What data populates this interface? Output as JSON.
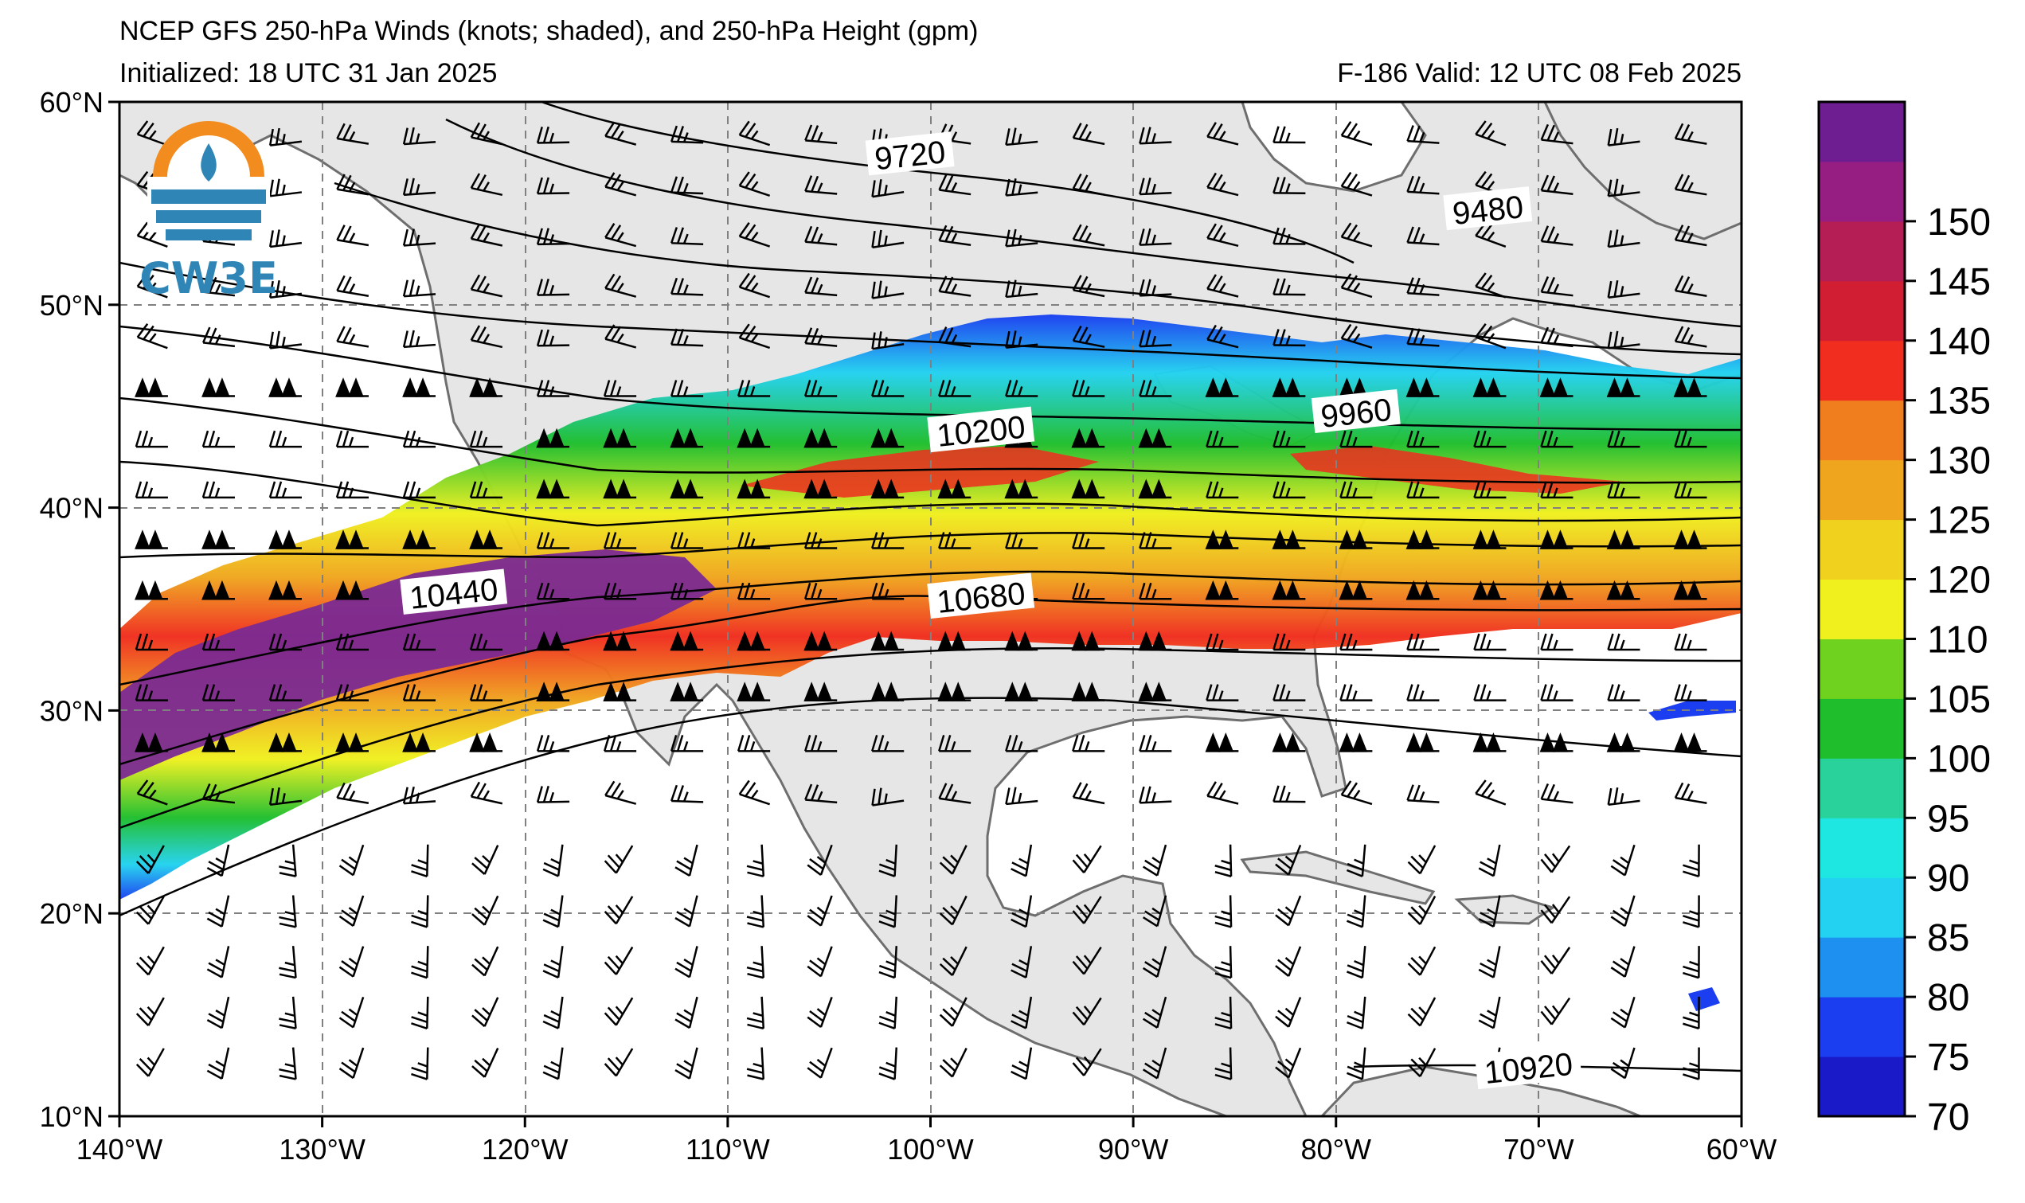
{
  "title": {
    "line1": "NCEP GFS 250-hPa Winds (knots; shaded), and 250-hPa Height (gpm)",
    "line2_left": "Initialized: 18 UTC 31 Jan 2025",
    "line2_right": "F-186  Valid: 12 UTC 08 Feb 2025"
  },
  "logo": {
    "text": "CW3E"
  },
  "map": {
    "lon_range": [
      -140,
      -60
    ],
    "lat_range": [
      10,
      60
    ],
    "lon_ticks": [
      -140,
      -130,
      -120,
      -110,
      -100,
      -90,
      -80,
      -70,
      -60
    ],
    "lat_ticks": [
      10,
      20,
      30,
      40,
      50,
      60
    ],
    "lon_labels": [
      "140°W",
      "130°W",
      "120°W",
      "110°W",
      "100°W",
      "90°W",
      "80°W",
      "70°W",
      "60°W"
    ],
    "lat_labels": [
      "10°N",
      "20°N",
      "30°N",
      "40°N",
      "50°N",
      "60°N"
    ],
    "grid": "dashed",
    "land_color": "#e6e6e6",
    "ocean_color": "#ffffff"
  },
  "contours": {
    "variable": "250-hPa Height (gpm)",
    "labels": [
      {
        "text": "9720",
        "lon": -101,
        "lat": 57.3
      },
      {
        "text": "9480",
        "lon": -72.5,
        "lat": 54.6
      },
      {
        "text": "9960",
        "lon": -79,
        "lat": 44.6
      },
      {
        "text": "10200",
        "lon": -97.5,
        "lat": 43.7
      },
      {
        "text": "10440",
        "lon": -123.5,
        "lat": 35.7
      },
      {
        "text": "10680",
        "lon": -97.5,
        "lat": 35.5
      },
      {
        "text": "10920",
        "lon": -70.5,
        "lat": 12.3
      }
    ]
  },
  "colorbar": {
    "variable": "250-hPa Winds (knots)",
    "levels": [
      70,
      75,
      80,
      85,
      90,
      95,
      100,
      105,
      110,
      120,
      125,
      130,
      135,
      140,
      145,
      150,
      155
    ],
    "tick_labels": [
      "70",
      "75",
      "80",
      "85",
      "90",
      "95",
      "100",
      "105",
      "110",
      "120",
      "125",
      "130",
      "135",
      "140",
      "145",
      "150"
    ],
    "colors": [
      "#1a1ac8",
      "#1a3ef0",
      "#1e90f0",
      "#22d2f0",
      "#1ee6e1",
      "#28d29a",
      "#1ebe2d",
      "#6ed21e",
      "#f0f01e",
      "#f0d21e",
      "#f0a51e",
      "#f07d1e",
      "#f02d1e",
      "#d21e32",
      "#b41e55",
      "#961e82",
      "#6e1e91"
    ]
  }
}
